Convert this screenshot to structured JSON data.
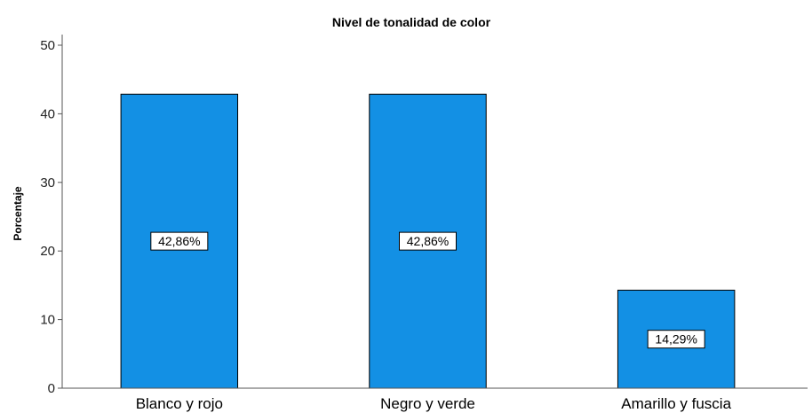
{
  "chart_data": {
    "type": "bar",
    "title": "Nivel de tonalidad de color",
    "ylabel": "Porcentaje",
    "xlabel": "",
    "categories": [
      "Blanco y rojo",
      "Negro y verde",
      "Amarillo y fuscia"
    ],
    "values": [
      42.86,
      42.86,
      14.29
    ],
    "data_labels": [
      "42,86%",
      "42,86%",
      "14,29%"
    ],
    "ylim": [
      0,
      50
    ],
    "yticks": [
      0,
      10,
      20,
      30,
      40,
      50
    ],
    "bar_color": "#1390e4",
    "grid": false
  }
}
